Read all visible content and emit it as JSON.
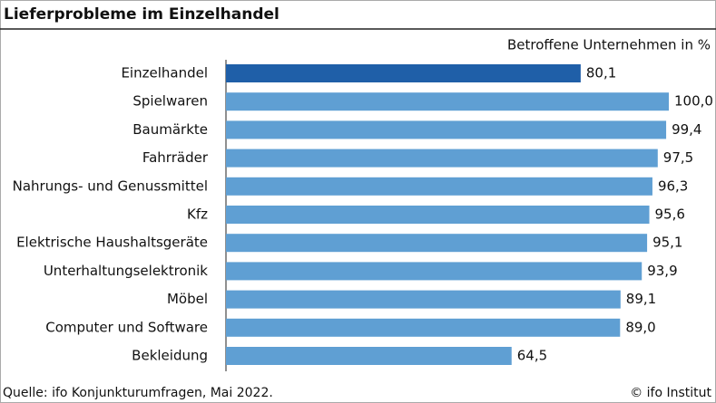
{
  "chart_data": {
    "type": "bar",
    "orientation": "horizontal",
    "title": "Lieferprobleme im Einzelhandel",
    "unit_label": "Betroffene Unternehmen in %",
    "categories": [
      "Einzelhandel",
      "Spielwaren",
      "Baumärkte",
      "Fahrräder",
      "Nahrungs- und Genussmittel",
      "Kfz",
      "Elektrische Haushaltsgeräte",
      "Unterhaltungselektronik",
      "Möbel",
      "Computer und Software",
      "Bekleidung"
    ],
    "values": [
      80.1,
      100.0,
      99.4,
      97.5,
      96.3,
      95.6,
      95.1,
      93.9,
      89.1,
      89.0,
      64.5
    ],
    "value_labels": [
      "80,1",
      "100,0",
      "99,4",
      "97,5",
      "96,3",
      "95,6",
      "95,1",
      "93,9",
      "89,1",
      "89,0",
      "64,5"
    ],
    "colors": [
      "#1f5fa8",
      "#5f9fd3",
      "#5f9fd3",
      "#5f9fd3",
      "#5f9fd3",
      "#5f9fd3",
      "#5f9fd3",
      "#5f9fd3",
      "#5f9fd3",
      "#5f9fd3",
      "#5f9fd3"
    ],
    "source": "Quelle: ifo Konjunkturumfragen, Mai 2022.",
    "copyright": "© ifo Institut"
  }
}
